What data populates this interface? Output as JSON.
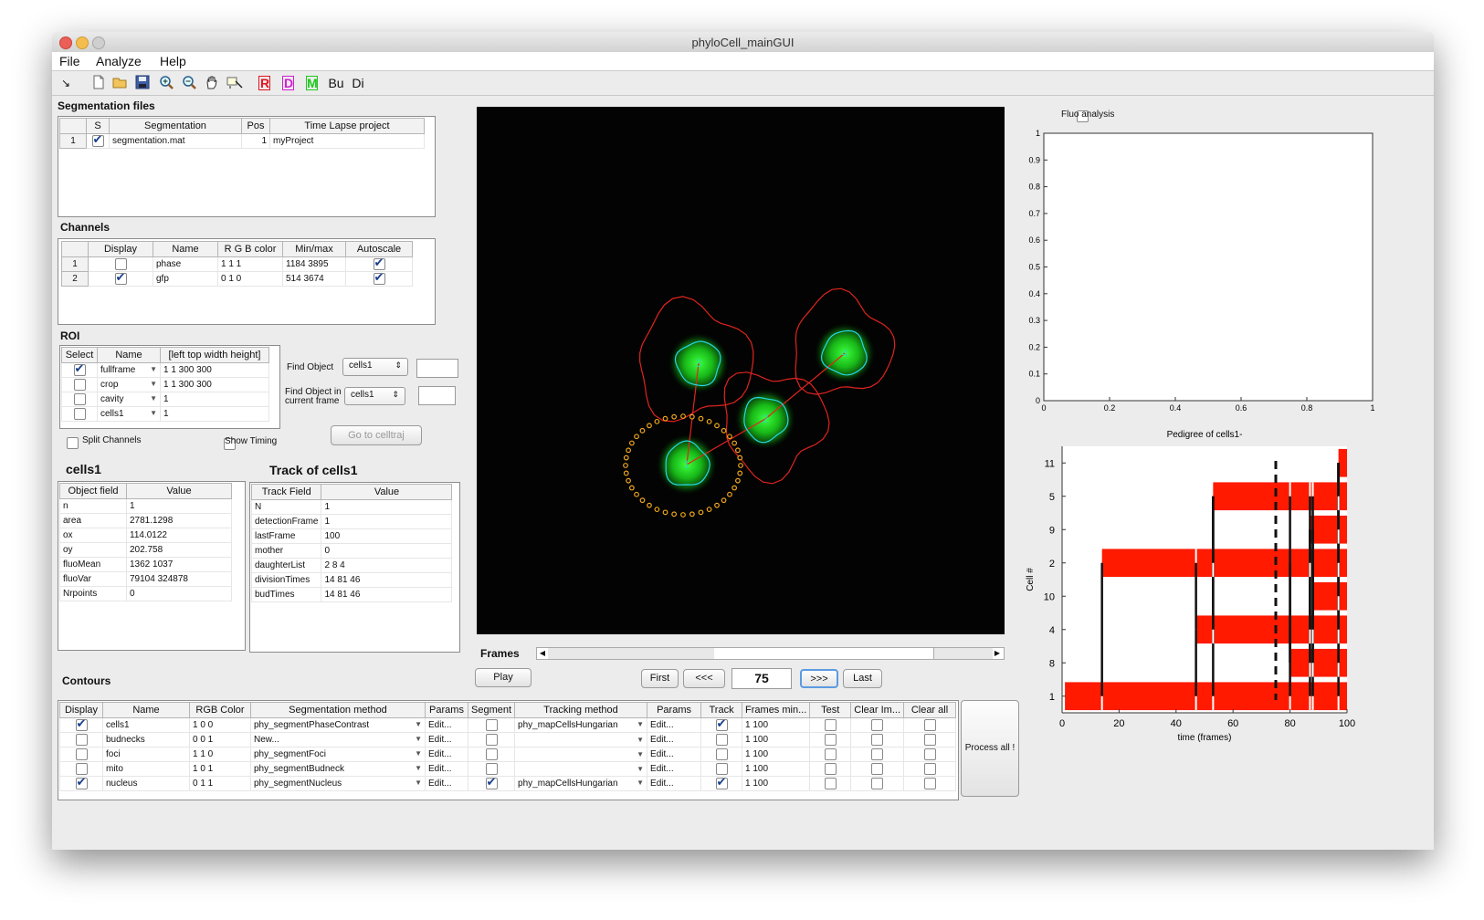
{
  "window": {
    "title": "phyloCell_mainGUI"
  },
  "menu": [
    "File",
    "Analyze",
    "Help"
  ],
  "toolbar": {
    "arrow": "↘",
    "letter_buttons": [
      {
        "label": "R",
        "color": "#e0141e"
      },
      {
        "label": "D",
        "color": "#d21ed2"
      },
      {
        "label": "M",
        "color": "#1ec81e"
      },
      {
        "label": "Bu",
        "color": "#111111"
      },
      {
        "label": "Di",
        "color": "#111111"
      }
    ]
  },
  "segmentation_files": {
    "title": "Segmentation files",
    "headers": [
      "",
      "S",
      "Segmentation",
      "Pos",
      "Time Lapse project"
    ],
    "rows": [
      {
        "num": "1",
        "checked": true,
        "segmentation": "segmentation.mat",
        "pos": "1",
        "project": "myProject"
      }
    ]
  },
  "channels": {
    "title": "Channels",
    "headers": [
      "",
      "Display",
      "Name",
      "R G B color",
      "Min/max",
      "Autoscale"
    ],
    "rows": [
      {
        "num": "1",
        "display": false,
        "name": "phase",
        "rgb": "1  1  1",
        "minmax": "1184 3895",
        "autoscale": true
      },
      {
        "num": "2",
        "display": true,
        "name": "gfp",
        "rgb": "0 1 0",
        "minmax": "514 3674",
        "autoscale": true
      }
    ]
  },
  "roi": {
    "title": "ROI",
    "headers": [
      "Select",
      "Name",
      "[left top width height]"
    ],
    "rows": [
      {
        "select": true,
        "name": "fullframe",
        "value": "1   1  300  300"
      },
      {
        "select": false,
        "name": "crop",
        "value": "1   1  300  300"
      },
      {
        "select": false,
        "name": "cavity",
        "value": "1"
      },
      {
        "select": false,
        "name": "cells1",
        "value": "1"
      }
    ],
    "find_object_label": "Find Object",
    "find_object_value": "cells1",
    "find_object_frame_label": "Find Object in current frame",
    "find_object_frame_value": "cells1",
    "goto_button": "Go to celltraj",
    "split_channels": "Split Channels",
    "show_timing": "Show Timing"
  },
  "object_panel": {
    "title": "cells1",
    "headers": [
      "Object field",
      "Value"
    ],
    "rows": [
      [
        "n",
        "1"
      ],
      [
        "area",
        "2781.1298"
      ],
      [
        "ox",
        "114.0122"
      ],
      [
        "oy",
        "202.758"
      ],
      [
        "fluoMean",
        "1362  1037"
      ],
      [
        "fluoVar",
        "79104  324878"
      ],
      [
        "Nrpoints",
        "0"
      ]
    ]
  },
  "track_panel": {
    "title": "Track of cells1",
    "headers": [
      "Track Field",
      "Value"
    ],
    "rows": [
      [
        "N",
        "1"
      ],
      [
        "detectionFrame",
        "1"
      ],
      [
        "lastFrame",
        "100"
      ],
      [
        "mother",
        "0"
      ],
      [
        "daughterList",
        "2  8  4"
      ],
      [
        "divisionTimes",
        "14  81  46"
      ],
      [
        "budTimes",
        "14  81  46"
      ]
    ]
  },
  "image_view": {
    "cells": [
      {
        "id": "1",
        "cx": 752,
        "cy": 509
      },
      {
        "id": "2",
        "cx": 838,
        "cy": 459
      },
      {
        "id": "3",
        "cx": 765,
        "cy": 398
      },
      {
        "id": "4",
        "cx": 925,
        "cy": 387
      }
    ]
  },
  "frames": {
    "label": "Frames",
    "play": "Play",
    "first": "First",
    "prev": "<<<",
    "current": "75",
    "next": ">>>",
    "last": "Last"
  },
  "contours": {
    "title": "Contours",
    "headers": [
      "Display",
      "Name",
      "RGB Color",
      "Segmentation method",
      "Params",
      "Segment",
      "Tracking method",
      "Params",
      "Track",
      "Frames min...",
      "Test",
      "Clear Im...",
      "Clear all"
    ],
    "rows": [
      {
        "display": true,
        "name": "cells1",
        "rgb": "1  0  0",
        "seg": "phy_segmentPhaseContrast",
        "params": "Edit...",
        "segment": false,
        "track_method": "phy_mapCellsHungarian",
        "params2": "Edit...",
        "track": true,
        "frames": "1  100"
      },
      {
        "display": false,
        "name": "budnecks",
        "rgb": "0  0  1",
        "seg": "New...",
        "params": "Edit...",
        "segment": false,
        "track_method": "",
        "params2": "Edit...",
        "track": false,
        "frames": "1  100"
      },
      {
        "display": false,
        "name": "foci",
        "rgb": "1  1  0",
        "seg": "phy_segmentFoci",
        "params": "Edit...",
        "segment": false,
        "track_method": "",
        "params2": "Edit...",
        "track": false,
        "frames": "1  100"
      },
      {
        "display": false,
        "name": "mito",
        "rgb": "1  0  1",
        "seg": "phy_segmentBudneck",
        "params": "Edit...",
        "segment": false,
        "track_method": "",
        "params2": "Edit...",
        "track": false,
        "frames": "1  100"
      },
      {
        "display": true,
        "name": "nucleus",
        "rgb": "0  1  1",
        "seg": "phy_segmentNucleus",
        "params": "Edit...",
        "segment": true,
        "track_method": "phy_mapCellsHungarian",
        "params2": "Edit...",
        "track": true,
        "frames": "1  100"
      }
    ],
    "process_all": "Process all !"
  },
  "fluo": {
    "checkbox_label": "Fluo analysis",
    "yticks": [
      "0",
      "0.1",
      "0.2",
      "0.3",
      "0.4",
      "0.5",
      "0.6",
      "0.7",
      "0.8",
      "0.9",
      "1"
    ],
    "xticks": [
      "0",
      "0.2",
      "0.4",
      "0.6",
      "0.8",
      "1"
    ]
  },
  "chart_data": {
    "type": "bar",
    "title": "Pedigree of cells1-",
    "xlabel": "time (frames)",
    "ylabel": "Cell #",
    "xlim": [
      0,
      100
    ],
    "xticks": [
      "0",
      "20",
      "40",
      "60",
      "80",
      "100"
    ],
    "categories": [
      "1",
      "8",
      "4",
      "10",
      "2",
      "9",
      "5",
      "11"
    ],
    "bars": [
      {
        "cell": "1",
        "start": 1,
        "end": 100
      },
      {
        "cell": "8",
        "start": 80,
        "end": 100
      },
      {
        "cell": "4",
        "start": 47,
        "end": 100
      },
      {
        "cell": "10",
        "start": 88,
        "end": 100
      },
      {
        "cell": "2",
        "start": 14,
        "end": 100
      },
      {
        "cell": "9",
        "start": 87,
        "end": 100
      },
      {
        "cell": "5",
        "start": 53,
        "end": 100
      },
      {
        "cell": "11",
        "start": 97,
        "end": 100
      }
    ],
    "bar_color": "#ff1a00",
    "current_frame": 75
  }
}
